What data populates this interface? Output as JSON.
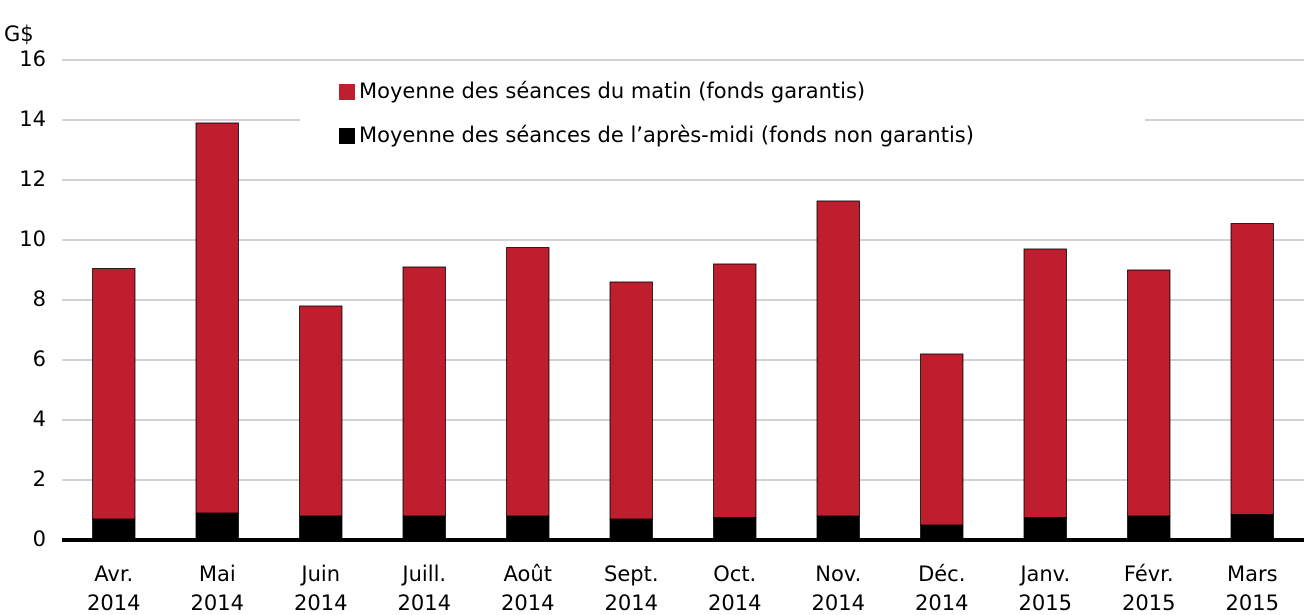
{
  "chart_data": {
    "type": "stacked_bar",
    "y_label": "G$",
    "categories": [
      [
        "Avr.",
        "2014"
      ],
      [
        "Mai",
        "2014"
      ],
      [
        "Juin",
        "2014"
      ],
      [
        "Juill.",
        "2014"
      ],
      [
        "Août",
        "2014"
      ],
      [
        "Sept.",
        "2014"
      ],
      [
        "Oct.",
        "2014"
      ],
      [
        "Nov.",
        "2014"
      ],
      [
        "Déc.",
        "2014"
      ],
      [
        "Janv.",
        "2015"
      ],
      [
        "Févr.",
        "2015"
      ],
      [
        "Mars",
        "2015"
      ]
    ],
    "series": [
      {
        "name": "Moyenne des séances du matin (fonds garantis)",
        "color": "#be1e2d",
        "values": [
          8.35,
          13.0,
          7.0,
          8.3,
          8.95,
          7.9,
          8.45,
          10.5,
          5.7,
          8.95,
          8.2,
          9.7
        ]
      },
      {
        "name": "Moyenne des séances de l’après-midi (fonds non garantis)",
        "color": "#000000",
        "values": [
          0.7,
          0.9,
          0.8,
          0.8,
          0.8,
          0.7,
          0.75,
          0.8,
          0.5,
          0.75,
          0.8,
          0.85
        ]
      }
    ],
    "ylim": [
      0,
      16
    ],
    "yticks": [
      0,
      2,
      4,
      6,
      8,
      10,
      12,
      14,
      16
    ],
    "grid": true,
    "legend": "top"
  }
}
